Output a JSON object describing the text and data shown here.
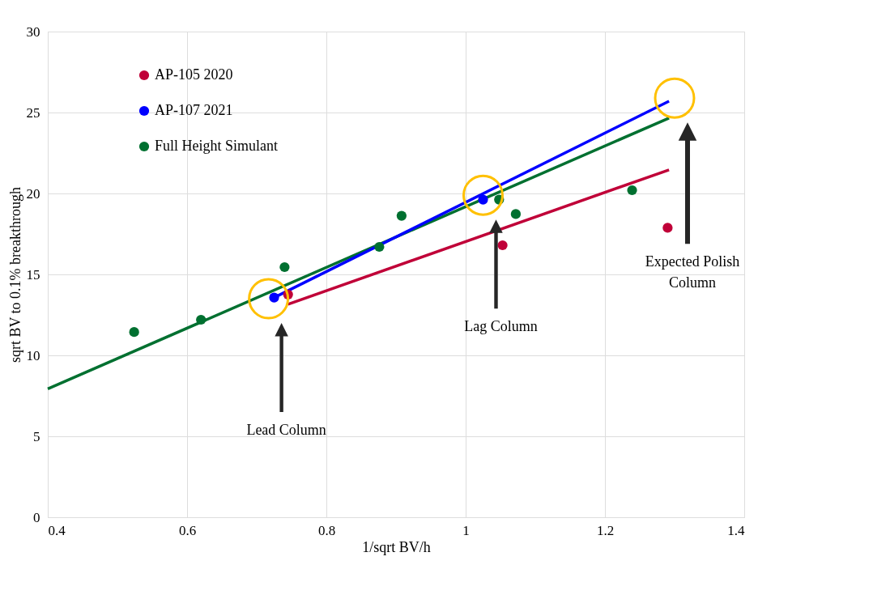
{
  "chart_data": {
    "type": "scatter",
    "xlabel": "1/sqrt BV/h",
    "ylabel": "sqrt BV to 0.1% breakthrough",
    "xlim": [
      0.4,
      1.4
    ],
    "xticks": [
      0.4,
      0.6,
      0.8,
      {
        "value": 1,
        "label": "1"
      },
      1.2,
      1.4
    ],
    "ylim": [
      0,
      30
    ],
    "yticks": [
      0,
      5,
      10,
      15,
      20,
      25,
      30
    ],
    "grid": true,
    "legend": "top left",
    "marker": "circle",
    "series": [
      {
        "name": "AP-105 2020",
        "color": "#c00038",
        "x": [
          0.745,
          1.053,
          1.29
        ],
        "values": [
          13.76,
          16.8,
          17.88
        ]
      },
      {
        "name": "AP-107 2021",
        "color": "#0000ff",
        "x": [
          0.725,
          1.025
        ],
        "values": [
          13.57,
          19.62
        ]
      },
      {
        "name": "Full Height Simulant",
        "color": "#007030",
        "x": [
          0.524,
          0.62,
          0.74,
          0.876,
          0.908,
          1.048,
          1.072,
          1.239
        ],
        "values": [
          11.44,
          12.2,
          15.45,
          16.7,
          18.62,
          19.62,
          18.73,
          20.2
        ]
      },
      {
        "color": "#c00038",
        "type": "line",
        "marker": "none",
        "line_style": "solid",
        "x": [
          0.745,
          1.292
        ],
        "values": [
          13.16,
          21.46
        ]
      },
      {
        "color": "#007030",
        "type": "line",
        "marker": "none",
        "line_style": "solid",
        "x": [
          0.4,
          1.292
        ],
        "values": [
          7.93,
          24.66
        ]
      },
      {
        "color": "#0000ff",
        "type": "line",
        "marker": "none",
        "line_style": "solid",
        "x": [
          0.725,
          1.292
        ],
        "values": [
          13.57,
          25.7
        ]
      }
    ],
    "annotations": [
      "Lead Column",
      "Lag Column",
      "Expected Polish Column"
    ]
  }
}
